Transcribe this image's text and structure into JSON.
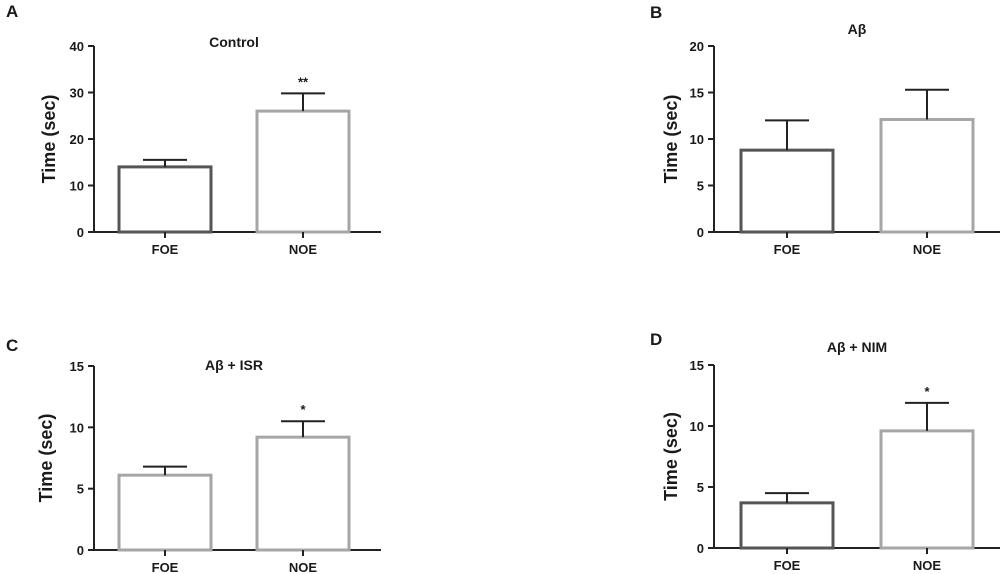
{
  "chart_data": [
    {
      "panel": "A",
      "type": "bar",
      "title": "Control",
      "ylabel": "Time (sec)",
      "categories": [
        "FOE",
        "NOE"
      ],
      "values": [
        14,
        26
      ],
      "errors": [
        1.5,
        3.8
      ],
      "significance": [
        "",
        "**"
      ],
      "bar_colors": [
        "#555555",
        "#a6a6a6"
      ],
      "ylim": [
        0,
        40
      ],
      "yticks": [
        0,
        10,
        20,
        30,
        40
      ],
      "grid": false
    },
    {
      "panel": "B",
      "type": "bar",
      "title": "Aβ",
      "ylabel": "Time (sec)",
      "categories": [
        "FOE",
        "NOE"
      ],
      "values": [
        8.8,
        12.1
      ],
      "errors": [
        3.2,
        3.2
      ],
      "significance": [
        "",
        ""
      ],
      "bar_colors": [
        "#555555",
        "#a6a6a6"
      ],
      "ylim": [
        0,
        20
      ],
      "yticks": [
        0,
        5,
        10,
        15,
        20
      ],
      "grid": false
    },
    {
      "panel": "C",
      "type": "bar",
      "title": "Aβ + ISR",
      "ylabel": "Time (sec)",
      "categories": [
        "FOE",
        "NOE"
      ],
      "values": [
        6.1,
        9.2
      ],
      "errors": [
        0.7,
        1.3
      ],
      "significance": [
        "",
        "*"
      ],
      "bar_colors": [
        "#a6a6a6",
        "#a6a6a6"
      ],
      "ylim": [
        0,
        15
      ],
      "yticks": [
        0,
        5,
        10,
        15
      ],
      "grid": false
    },
    {
      "panel": "D",
      "type": "bar",
      "title": "Aβ + NIM",
      "ylabel": "Time (sec)",
      "categories": [
        "FOE",
        "NOE"
      ],
      "values": [
        3.7,
        9.6
      ],
      "errors": [
        0.8,
        2.3
      ],
      "significance": [
        "",
        "*"
      ],
      "bar_colors": [
        "#555555",
        "#a6a6a6"
      ],
      "ylim": [
        0,
        15
      ],
      "yticks": [
        0,
        5,
        10,
        15
      ],
      "grid": false
    }
  ]
}
